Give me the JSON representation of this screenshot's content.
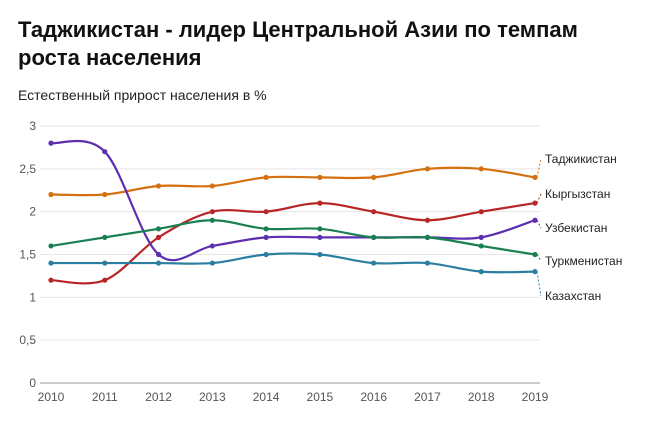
{
  "chart_data": {
    "type": "line",
    "title": "Таджикистан - лидер Центральной Азии по темпам роста населения",
    "subtitle": "Естественный прирост населения в %",
    "xlabel": "",
    "ylabel": "",
    "x": [
      "2010",
      "2011",
      "2012",
      "2013",
      "2014",
      "2015",
      "2016",
      "2017",
      "2018",
      "2019"
    ],
    "ylim": [
      0,
      3
    ],
    "yticks": [
      0,
      0.5,
      1,
      1.5,
      2,
      2.5,
      3
    ],
    "ytick_labels": [
      "0",
      "0,5",
      "1",
      "1,5",
      "2",
      "2,5",
      "3"
    ],
    "grid": true,
    "series": [
      {
        "name": "Таджикистан",
        "color": "#D4700F",
        "values": [
          2.2,
          2.2,
          2.3,
          2.3,
          2.4,
          2.4,
          2.4,
          2.5,
          2.5,
          2.4
        ]
      },
      {
        "name": "Кыргызстан",
        "color": "#B82626",
        "values": [
          1.2,
          1.2,
          1.7,
          2.0,
          2.0,
          2.1,
          2.0,
          1.9,
          2.0,
          2.1
        ]
      },
      {
        "name": "Узбекистан",
        "color": "#5C2FB0",
        "values": [
          2.8,
          2.7,
          1.5,
          1.6,
          1.7,
          1.7,
          1.7,
          1.7,
          1.7,
          1.9
        ]
      },
      {
        "name": "Туркменистан",
        "color": "#1A7F52",
        "values": [
          1.6,
          1.7,
          1.8,
          1.9,
          1.8,
          1.8,
          1.7,
          1.7,
          1.6,
          1.5
        ]
      },
      {
        "name": "Казахстан",
        "color": "#2A7FA0",
        "values": [
          1.4,
          1.4,
          1.4,
          1.4,
          1.5,
          1.5,
          1.4,
          1.4,
          1.3,
          1.3
        ]
      }
    ]
  }
}
